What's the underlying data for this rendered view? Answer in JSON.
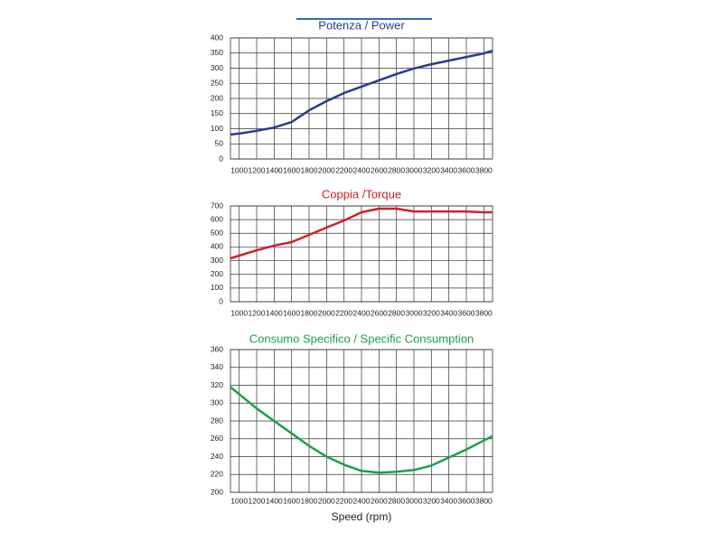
{
  "chart_data": [
    {
      "type": "line",
      "title": "Potenza / Power",
      "color": "#2b3a8c",
      "grid": true,
      "x": [
        900,
        1000,
        1200,
        1400,
        1600,
        1800,
        2000,
        2200,
        2400,
        2600,
        2800,
        3000,
        3200,
        3400,
        3600,
        3800,
        3900
      ],
      "values": [
        81,
        84,
        93,
        104,
        122,
        161,
        191,
        218,
        239,
        260,
        281,
        299,
        313,
        325,
        337,
        349,
        358
      ],
      "xlim": [
        900,
        3900
      ],
      "xticks": [
        1000,
        1200,
        1400,
        1600,
        1800,
        2000,
        2200,
        2400,
        2600,
        2800,
        3000,
        3200,
        3400,
        3600,
        3800
      ],
      "ylim": [
        0,
        400
      ],
      "yticks": [
        0,
        50,
        100,
        150,
        200,
        250,
        300,
        350,
        400
      ]
    },
    {
      "type": "line",
      "title": "Coppia /Torque",
      "color": "#d0202a",
      "grid": true,
      "x": [
        900,
        1000,
        1200,
        1400,
        1600,
        1800,
        2000,
        2200,
        2400,
        2600,
        2800,
        3000,
        3200,
        3400,
        3600,
        3800,
        3900
      ],
      "values": [
        317,
        337,
        376,
        410,
        436,
        489,
        542,
        594,
        654,
        680,
        680,
        660,
        660,
        660,
        660,
        654,
        654
      ],
      "xlim": [
        900,
        3900
      ],
      "xticks": [
        1000,
        1200,
        1400,
        1600,
        1800,
        2000,
        2200,
        2400,
        2600,
        2800,
        3000,
        3200,
        3400,
        3600,
        3800
      ],
      "ylim": [
        0,
        700
      ],
      "yticks": [
        0,
        100,
        200,
        300,
        400,
        500,
        600,
        700
      ]
    },
    {
      "type": "line",
      "title": "Consumo Specifico / Specific Consumption",
      "x_label": "Speed (rpm)",
      "color": "#1aa04a",
      "grid": true,
      "x": [
        900,
        1000,
        1200,
        1400,
        1600,
        1800,
        2000,
        2200,
        2400,
        2600,
        2800,
        3000,
        3200,
        3400,
        3600,
        3800,
        3900
      ],
      "values": [
        318,
        310,
        294,
        280,
        266,
        252,
        240,
        231,
        224,
        222,
        223,
        225,
        230,
        239,
        248,
        258,
        263
      ],
      "xlim": [
        900,
        3900
      ],
      "xticks": [
        1000,
        1200,
        1400,
        1600,
        1800,
        2000,
        2200,
        2400,
        2600,
        2800,
        3000,
        3200,
        3400,
        3600,
        3800
      ],
      "ylim": [
        200,
        360
      ],
      "yticks": [
        200,
        220,
        240,
        260,
        280,
        300,
        320,
        340,
        360
      ]
    }
  ]
}
